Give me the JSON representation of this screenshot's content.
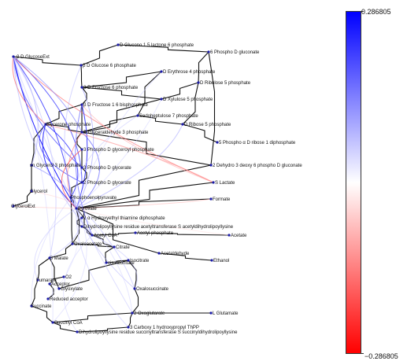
{
  "colorbar": {
    "max_label": "0.286805",
    "min_label": "−0.286805",
    "max_color": "#0000ff",
    "mid_color": "#ffffff",
    "min_color": "#ff0000"
  },
  "nodes": [
    {
      "id": "bdglcext",
      "label": "β D GlucoseExt"
    },
    {
      "id": "bdg6p",
      "label": "β D Glucose 6 phosphate"
    },
    {
      "id": "dgl15l6p",
      "label": "D Glucono 1 5 lactone 6 phosphate"
    },
    {
      "id": "6pdg",
      "label": "6 Phospho D gluconate"
    },
    {
      "id": "de4p",
      "label": "D Erythrose 4 phosphate"
    },
    {
      "id": "dru5p",
      "label": "D Ribulose 5 phosphate"
    },
    {
      "id": "bdf6p",
      "label": "β D Fructose 6 phosphate"
    },
    {
      "id": "dxu5p",
      "label": "D Xylulose 5 phosphate"
    },
    {
      "id": "bdf16bp",
      "label": "β D Fructose 1 6 bisphosphate"
    },
    {
      "id": "s7p",
      "label": "Sedoheptulose 7 phosphate"
    },
    {
      "id": "dhap",
      "label": "Glycerone phosphate"
    },
    {
      "id": "dr5p",
      "label": "D Ribose 5 phosphate"
    },
    {
      "id": "gap",
      "label": "D Glyceraldehyde 3 phosphate"
    },
    {
      "id": "prpp",
      "label": "5 Phospho α D ribose 1 diphosphate"
    },
    {
      "id": "3pdg",
      "label": "3 Phospho D glyceroyl phosphate"
    },
    {
      "id": "sng3p",
      "label": "sn Glycerol 3 phosphate"
    },
    {
      "id": "3pg",
      "label": "3 Phospho D glycerate"
    },
    {
      "id": "kdpg",
      "label": "2 Dehydro 3 deoxy 6 phospho D gluconate"
    },
    {
      "id": "2pg",
      "label": "2 Phospho D glycerate"
    },
    {
      "id": "slac",
      "label": "S Lactate"
    },
    {
      "id": "glycerol",
      "label": "Glycerol"
    },
    {
      "id": "pep",
      "label": "Phosphoenolpyruvate"
    },
    {
      "id": "glycext",
      "label": "GlycerolExt"
    },
    {
      "id": "formate",
      "label": "Formate"
    },
    {
      "id": "pyr",
      "label": "Pyruvate"
    },
    {
      "id": "hetpp",
      "label": "2 α Hydroxyethyl thiamine diphosphate"
    },
    {
      "id": "dhlac",
      "label": "Dihydrolipoyllysine residue acetyltransferase S acetyldihydrolipoyllysine"
    },
    {
      "id": "acp",
      "label": "Acetyl phosphate"
    },
    {
      "id": "acetate",
      "label": "Acetate"
    },
    {
      "id": "accoa",
      "label": "Acetyl CoA"
    },
    {
      "id": "oaa",
      "label": "Oxaloacetate"
    },
    {
      "id": "citrate",
      "label": "Citrate"
    },
    {
      "id": "acald",
      "label": "Acetaldehyde"
    },
    {
      "id": "ethanol",
      "label": "Ethanol"
    },
    {
      "id": "isocit",
      "label": "Isocitrate"
    },
    {
      "id": "cisacon",
      "label": "cis Aconitate"
    },
    {
      "id": "smal",
      "label": "S Malate"
    },
    {
      "id": "glyox",
      "label": "Glyoxylate"
    },
    {
      "id": "fum",
      "label": "Fumarate"
    },
    {
      "id": "acceptor",
      "label": "Acceptor"
    },
    {
      "id": "o2",
      "label": "O2"
    },
    {
      "id": "oxsuc",
      "label": "Oxalosuccinate"
    },
    {
      "id": "redacc",
      "label": "Reduced acceptor"
    },
    {
      "id": "succ",
      "label": "Succinate"
    },
    {
      "id": "2og",
      "label": "2 Oxoglutarate"
    },
    {
      "id": "lglu",
      "label": "L Glutamate"
    },
    {
      "id": "succoa",
      "label": "Succinyl CoA"
    },
    {
      "id": "3c1htpp",
      "label": "3 Carboxy 1 hydroxypropyl ThPP"
    },
    {
      "id": "dhlsuc",
      "label": "Dihydrolipoyllysine residue succinyltransferase S succinyldihydrolipoyllysine"
    }
  ]
}
